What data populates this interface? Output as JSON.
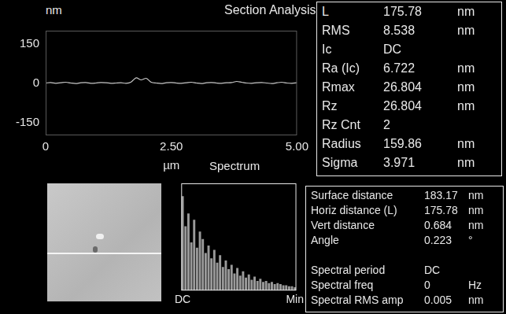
{
  "chart_data": [
    {
      "type": "line",
      "title": "Section Analysis",
      "ylabel": "nm",
      "xlabel": "µm",
      "x": [
        0,
        0.1,
        0.2,
        0.3,
        0.4,
        0.5,
        0.6,
        0.7,
        0.8,
        0.9,
        1.0,
        1.1,
        1.2,
        1.3,
        1.4,
        1.5,
        1.6,
        1.7,
        1.8,
        1.9,
        2.0,
        2.1,
        2.2,
        2.3,
        2.4,
        2.5,
        2.6,
        2.7,
        2.8,
        2.9,
        3.0,
        3.1,
        3.2,
        3.3,
        3.4,
        3.5,
        3.6,
        3.7,
        3.8,
        3.9,
        4.0,
        4.1,
        4.2,
        4.3,
        4.4,
        4.5,
        4.6,
        4.7,
        4.8,
        4.9,
        5.0
      ],
      "values": [
        0,
        2,
        -1,
        1,
        3,
        0,
        -2,
        1,
        2,
        -1,
        0,
        2,
        1,
        -1,
        0,
        1,
        -1,
        4,
        20,
        12,
        18,
        3,
        0,
        -2,
        1,
        2,
        0,
        -1,
        1,
        3,
        0,
        -2,
        1,
        2,
        0,
        -1,
        1,
        2,
        6,
        3,
        0,
        -1,
        1,
        2,
        0,
        -2,
        1,
        3,
        0,
        -1,
        1
      ],
      "color": "#c8c8c8",
      "xlim": [
        0,
        5
      ],
      "xticks": [
        0,
        {
          "value": 2.5,
          "label": "2.50"
        },
        {
          "value": 5,
          "label": "5.00"
        }
      ],
      "ylim": [
        -200,
        200
      ],
      "yticks": [
        -150,
        0,
        150
      ],
      "grid": false
    },
    {
      "type": "bar",
      "title": "Spectrum",
      "categories": [
        "DC",
        null,
        null,
        null,
        null,
        null,
        null,
        null,
        null,
        null,
        null,
        null,
        null,
        null,
        null,
        null,
        null,
        null,
        null,
        null,
        null,
        null,
        null,
        null,
        null,
        null,
        null,
        null,
        null,
        null,
        null,
        null,
        null,
        null,
        null,
        null,
        null,
        null,
        null,
        "Min"
      ],
      "values": [
        88,
        60,
        72,
        45,
        66,
        40,
        55,
        48,
        35,
        42,
        30,
        38,
        26,
        33,
        22,
        28,
        20,
        24,
        16,
        21,
        14,
        18,
        12,
        15,
        10,
        13,
        9,
        11,
        8,
        9,
        7,
        8,
        6,
        7,
        6,
        5,
        5,
        4,
        4,
        3
      ],
      "color": "#9a9a9a",
      "ylim": [
        0,
        100
      ],
      "yticks": [],
      "grid": false,
      "tick_labels": "x"
    }
  ],
  "results_table": {
    "rows": [
      [
        "L",
        "175.78",
        "nm"
      ],
      [
        "RMS",
        "8.538",
        "nm"
      ],
      [
        "Ic",
        "DC",
        ""
      ],
      [
        "Ra (Ic)",
        "6.722",
        "nm"
      ],
      [
        "Rmax",
        "26.804",
        "nm"
      ],
      [
        "Rz",
        "26.804",
        "nm"
      ],
      [
        "Rz Cnt",
        "2",
        ""
      ],
      [
        "Radius",
        "159.86",
        "nm"
      ],
      [
        "Sigma",
        "3.971",
        "nm"
      ]
    ]
  },
  "cursor_table": {
    "distances": [
      [
        "Surface distance",
        "183.17",
        "nm"
      ],
      [
        "Horiz distance (L)",
        "175.78",
        "nm"
      ],
      [
        "Vert distance",
        "0.684",
        "nm"
      ],
      [
        "Angle",
        "0.223",
        "°"
      ]
    ],
    "spectral": [
      [
        "Spectral period",
        "DC",
        ""
      ],
      [
        "Spectral freq",
        "0",
        "Hz"
      ],
      [
        "Spectral RMS amp",
        "0.005",
        "nm"
      ]
    ]
  }
}
